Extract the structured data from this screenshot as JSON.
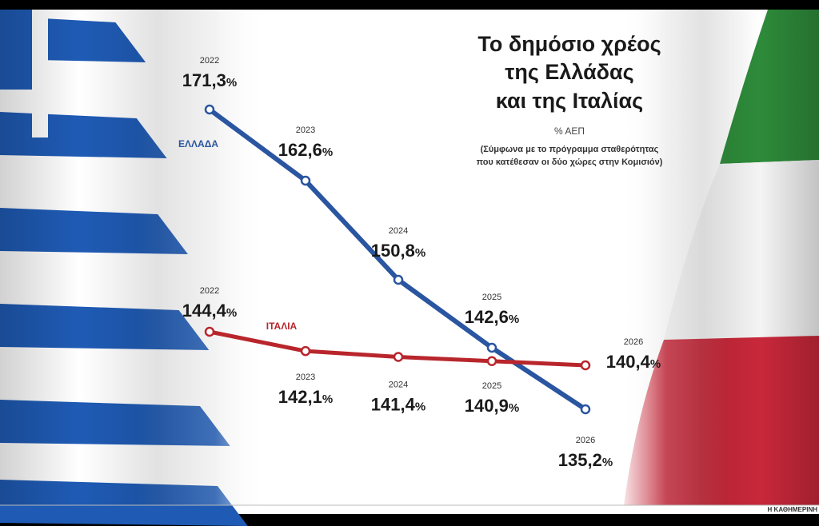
{
  "title_lines": [
    "Το δημόσιο χρέος",
    "της Ελλάδας",
    "και της Ιταλίας"
  ],
  "unit": "% ΑΕΠ",
  "note_lines": [
    "(Σύμφωνα με το πρόγραμμα σταθερότητας",
    "που κατέθεσαν οι δύο χώρες στην Κομισιόν)"
  ],
  "source": "Η ΚΑΘΗΜΕΡΙΝΗ",
  "colors": {
    "greece": "#2a55a0",
    "italy": "#b8262c",
    "flag_blue": "#1f5bb5",
    "flag_green": "#2e8b3a",
    "flag_red": "#c8283a"
  },
  "chart_data": {
    "type": "line",
    "title": "Το δημόσιο χρέος της Ελλάδας και της Ιταλίας",
    "ylabel": "% ΑΕΠ",
    "x": [
      "2022",
      "2023",
      "2024",
      "2025",
      "2026"
    ],
    "value_suffix": "%",
    "series": [
      {
        "name": "ΕΛΛΑΔΑ",
        "values": [
          171.3,
          162.6,
          150.8,
          142.6,
          135.2
        ],
        "labels": [
          "171,3",
          "162,6",
          "150,8",
          "142,6",
          "135,2"
        ]
      },
      {
        "name": "ΙΤΑΛΙΑ",
        "values": [
          144.4,
          142.1,
          141.4,
          140.9,
          140.4
        ],
        "labels": [
          "144,4",
          "142,1",
          "141,4",
          "140,9",
          "140,4"
        ]
      }
    ]
  }
}
